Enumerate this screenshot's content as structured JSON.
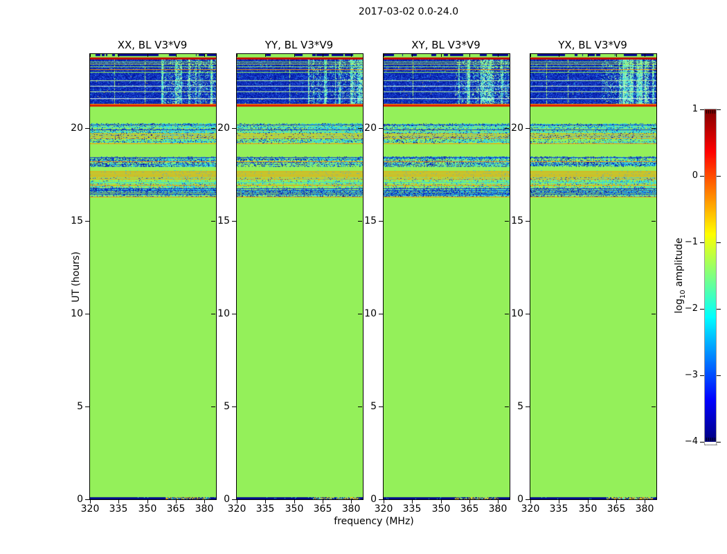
{
  "figure": {
    "suptitle": "2017-03-02 0.0-24.0",
    "xlabel": "frequency (MHz)",
    "ylabel": "UT (hours)",
    "colorbar_label": {
      "prefix": "log",
      "sub": "10",
      "suffix": " amplitude",
      "full": "log10 amplitude"
    },
    "background": "#ffffff"
  },
  "chart_data": {
    "type": "heatmap",
    "title": "2017-03-02 0.0-24.0",
    "panels": [
      {
        "title": "XX, BL V3*V9"
      },
      {
        "title": "YY, BL V3*V9"
      },
      {
        "title": "XY, BL V3*V9"
      },
      {
        "title": "YX, BL V3*V9"
      }
    ],
    "x_axis": {
      "label": "frequency (MHz)",
      "ticks": [
        320,
        335,
        350,
        365,
        380
      ],
      "range": [
        320,
        386
      ],
      "unit": "MHz"
    },
    "y_axis": {
      "label": "UT (hours)",
      "ticks": [
        0,
        5,
        10,
        15,
        20
      ],
      "range": [
        0,
        24
      ],
      "unit": "hours"
    },
    "colorbar": {
      "label": "log10 amplitude",
      "tick_labels": [
        "1",
        "0",
        "−1",
        "−2",
        "−3",
        "−4"
      ],
      "tick_values": [
        1,
        0,
        -1,
        -2,
        -3,
        -4
      ],
      "range": [
        -4,
        1
      ],
      "colormap": "jet",
      "border_color": "#999999"
    },
    "palette": {
      "background_green": "#94f05a",
      "deep_blue": "#000d8f",
      "blue": "#1440c8",
      "light_blue": "#2f62e8",
      "cyan": "#35d8e2",
      "pale_green_line": "#c0f598",
      "yellow_green_line": "#c2ea32",
      "orange": "#ff9400",
      "red": "#dc2000",
      "dark_red": "#c00a00",
      "yellow": "#ffd400"
    },
    "bands": [
      {
        "ut": [
          23.88,
          24.0
        ],
        "kind": "run_row",
        "base": "#000d8f",
        "alt": "#94f05a",
        "flip": 0.09
      },
      {
        "ut": [
          23.8,
          23.88
        ],
        "kind": "solid",
        "color": "#94f05a"
      },
      {
        "ut": [
          23.72,
          23.8
        ],
        "kind": "solid",
        "color": "#c00a00"
      },
      {
        "ut": [
          21.26,
          23.72
        ],
        "kind": "rfi_block",
        "base": "#0a28b4",
        "noise": [
          [
            "#0018a0",
            0.3
          ],
          [
            "#1e4cd8",
            0.22
          ],
          [
            "#2f62e8",
            0.08
          ],
          [
            "#35d8e2",
            0.01
          ],
          [
            "#ffd400",
            0.002
          ]
        ],
        "col_start_mhz": 357.5,
        "col_colors": [
          [
            "#45dede",
            0.55
          ],
          [
            "#8ff0b0",
            0.25
          ],
          [
            "#c0f598",
            0.2
          ]
        ],
        "vline_color": "#a8ef6e",
        "hlines": [
          {
            "ut": 23.6,
            "color": "#94f05a"
          },
          {
            "ut": 23.47,
            "color": "#c2ea32"
          },
          {
            "ut": 23.33,
            "color": "#94f05a"
          },
          {
            "ut": 23.18,
            "color": "#ff9400"
          },
          {
            "ut": 23.04,
            "color": "#94f05a"
          },
          {
            "ut": 22.6,
            "color": "#c0f598"
          },
          {
            "ut": 22.3,
            "color": "#d9ffd0"
          },
          {
            "ut": 22.0,
            "color": "#c0f598"
          },
          {
            "ut": 21.62,
            "color": "#e6ffe0"
          },
          {
            "ut": 21.33,
            "color": "#ff9400"
          }
        ]
      },
      {
        "ut": [
          21.17,
          21.26
        ],
        "kind": "solid",
        "color": "#dc2000"
      },
      {
        "ut": [
          20.28,
          21.17
        ],
        "kind": "solid",
        "color": "#94f05a"
      },
      {
        "ut": [
          19.16,
          20.28
        ],
        "kind": "speckle",
        "base": "#94f05a",
        "speckles": [
          [
            "#35d8e2",
            0.2
          ],
          [
            "#1440c8",
            0.1
          ],
          [
            "#000d8f",
            0.05
          ]
        ],
        "right_boost": 0.3,
        "hlines": [
          {
            "ut": 20.2,
            "color": "#1440c8"
          },
          {
            "ut": 20.08,
            "color": "#35d8e2"
          },
          {
            "ut": 19.95,
            "color": "#1440c8"
          },
          {
            "ut": 19.83,
            "color": "#35d8e2"
          },
          {
            "ut": 19.71,
            "color": "#ff9400"
          },
          {
            "ut": 19.6,
            "color": "#ff9400"
          },
          {
            "ut": 19.49,
            "color": "#ff9400"
          },
          {
            "ut": 19.18,
            "color": "#ff9400"
          }
        ]
      },
      {
        "ut": [
          18.47,
          19.16
        ],
        "kind": "solid",
        "color": "#94f05a"
      },
      {
        "ut": [
          17.91,
          18.47
        ],
        "kind": "speckle",
        "base": "#94f05a",
        "speckles": [
          [
            "#1440c8",
            0.24
          ],
          [
            "#35d8e2",
            0.2
          ],
          [
            "#000d8f",
            0.08
          ]
        ],
        "right_boost": 0.22,
        "hlines": [
          {
            "ut": 18.42,
            "color": "#1440c8"
          },
          {
            "ut": 18.23,
            "color": "#ff9400"
          },
          {
            "ut": 17.93,
            "color": "#ff9400"
          }
        ]
      },
      {
        "ut": [
          17.72,
          17.91
        ],
        "kind": "solid",
        "color": "#94f05a"
      },
      {
        "ut": [
          17.35,
          17.72
        ],
        "kind": "speckle",
        "base": "#94f05a",
        "speckles": [
          [
            "#35d8e2",
            0.05
          ]
        ],
        "right_boost": 0.08,
        "hlines": [
          {
            "ut": 17.69,
            "color": "#ff9400"
          },
          {
            "ut": 17.62,
            "color": "#ff9400"
          },
          {
            "ut": 17.55,
            "color": "#ff9400"
          },
          {
            "ut": 17.48,
            "color": "#ff9400"
          },
          {
            "ut": 17.41,
            "color": "#ff9400"
          }
        ]
      },
      {
        "ut": [
          16.81,
          17.35
        ],
        "kind": "speckle",
        "base": "#94f05a",
        "speckles": [
          [
            "#35d8e2",
            0.16
          ],
          [
            "#ff9400",
            0.05
          ],
          [
            "#1440c8",
            0.07
          ]
        ],
        "right_boost": 0.2,
        "hlines": [
          {
            "ut": 17.28,
            "color": "#ff9400"
          },
          {
            "ut": 17.1,
            "color": "#35d8e2"
          },
          {
            "ut": 16.95,
            "color": "#ff9400"
          }
        ]
      },
      {
        "ut": [
          16.28,
          16.81
        ],
        "kind": "speckle",
        "base": "#94f05a",
        "speckles": [
          [
            "#1440c8",
            0.24
          ],
          [
            "#35d8e2",
            0.24
          ],
          [
            "#000d8f",
            0.08
          ]
        ],
        "right_boost": 0.28,
        "hlines": [
          {
            "ut": 16.75,
            "color": "#1440c8"
          },
          {
            "ut": 16.65,
            "color": "#1440c8"
          },
          {
            "ut": 16.55,
            "color": "#1440c8"
          },
          {
            "ut": 16.45,
            "color": "#1440c8"
          },
          {
            "ut": 16.3,
            "color": "#ff9400"
          }
        ]
      },
      {
        "ut": [
          0.1,
          16.28
        ],
        "kind": "solid",
        "color": "#94f05a"
      },
      {
        "ut": [
          0.0,
          0.1
        ],
        "kind": "bottom_row",
        "base": "#000d8f",
        "seg": [
          356,
          380
        ],
        "seg_colors": [
          [
            "#ffd400",
            0.35
          ],
          [
            "#35d8e2",
            0.3
          ],
          [
            "#ff9400",
            0.15
          ],
          [
            "#94f05a",
            0.1
          ]
        ]
      }
    ]
  }
}
